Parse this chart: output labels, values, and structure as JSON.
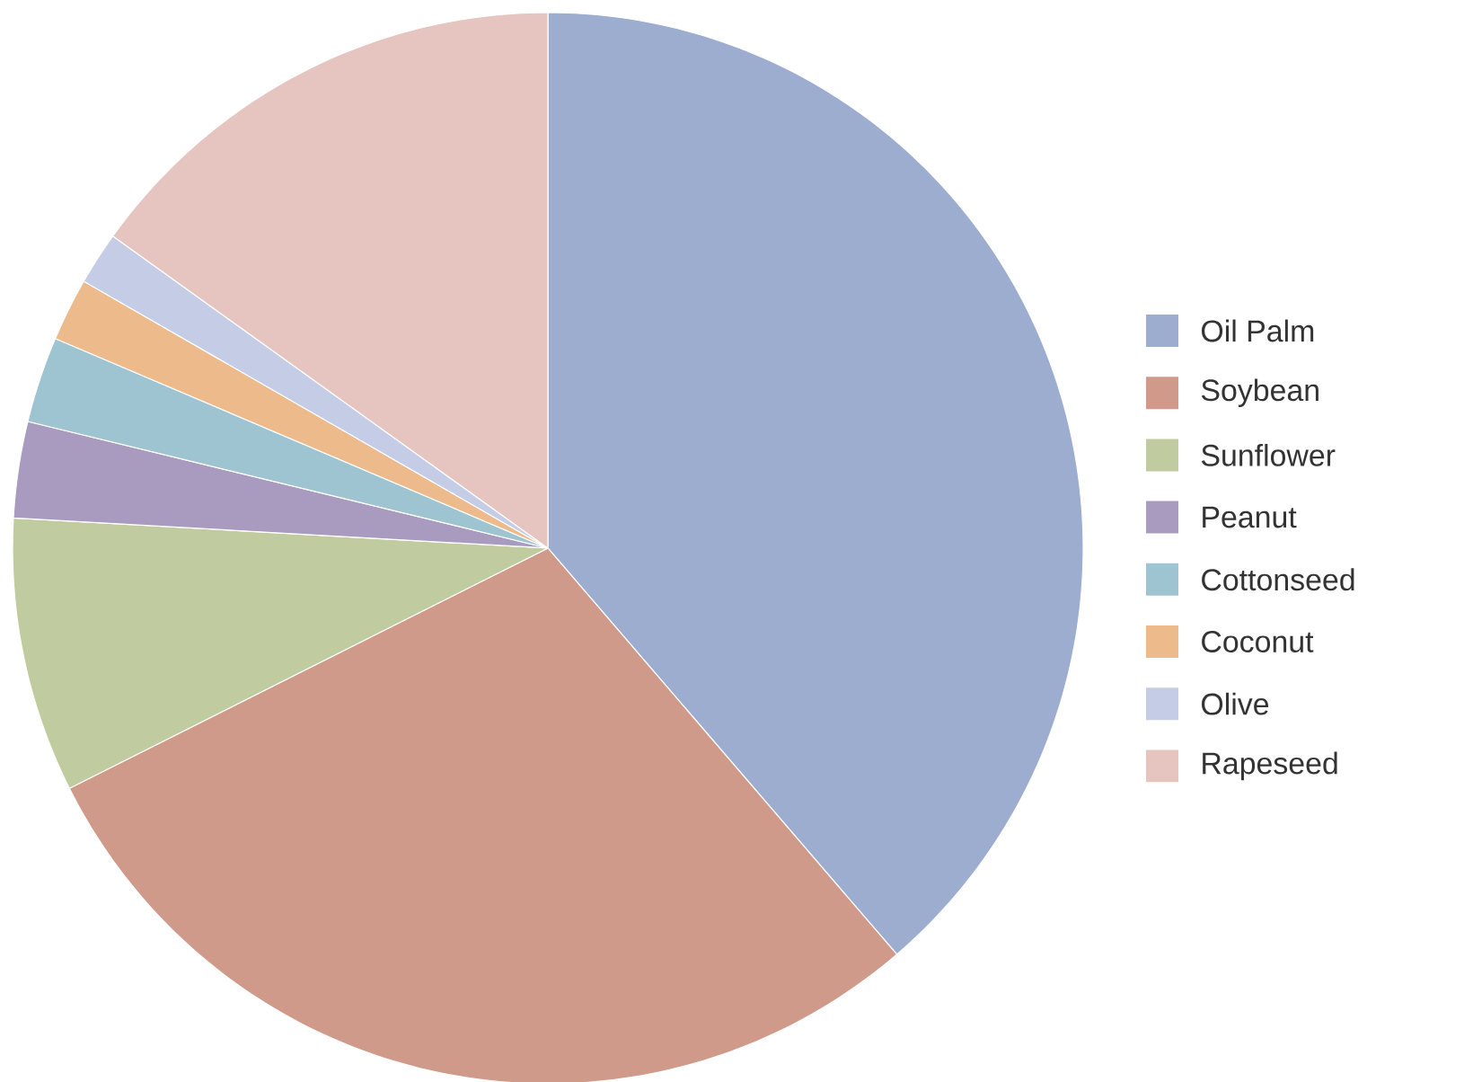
{
  "chart_data": {
    "type": "pie",
    "categories": [
      "Oil Palm",
      "Soybean",
      "Sunflower",
      "Peanut",
      "Cottonseed",
      "Coconut",
      "Olive",
      "Rapeseed"
    ],
    "values": [
      38.7,
      28.9,
      8.3,
      2.9,
      2.6,
      1.9,
      1.6,
      15.1
    ],
    "colors": [
      "#9dadcf",
      "#d09a8a",
      "#c0cb9f",
      "#a99ac0",
      "#9fc4d1",
      "#edba8c",
      "#c5cce6",
      "#e6c5c1"
    ],
    "legend": "right"
  }
}
